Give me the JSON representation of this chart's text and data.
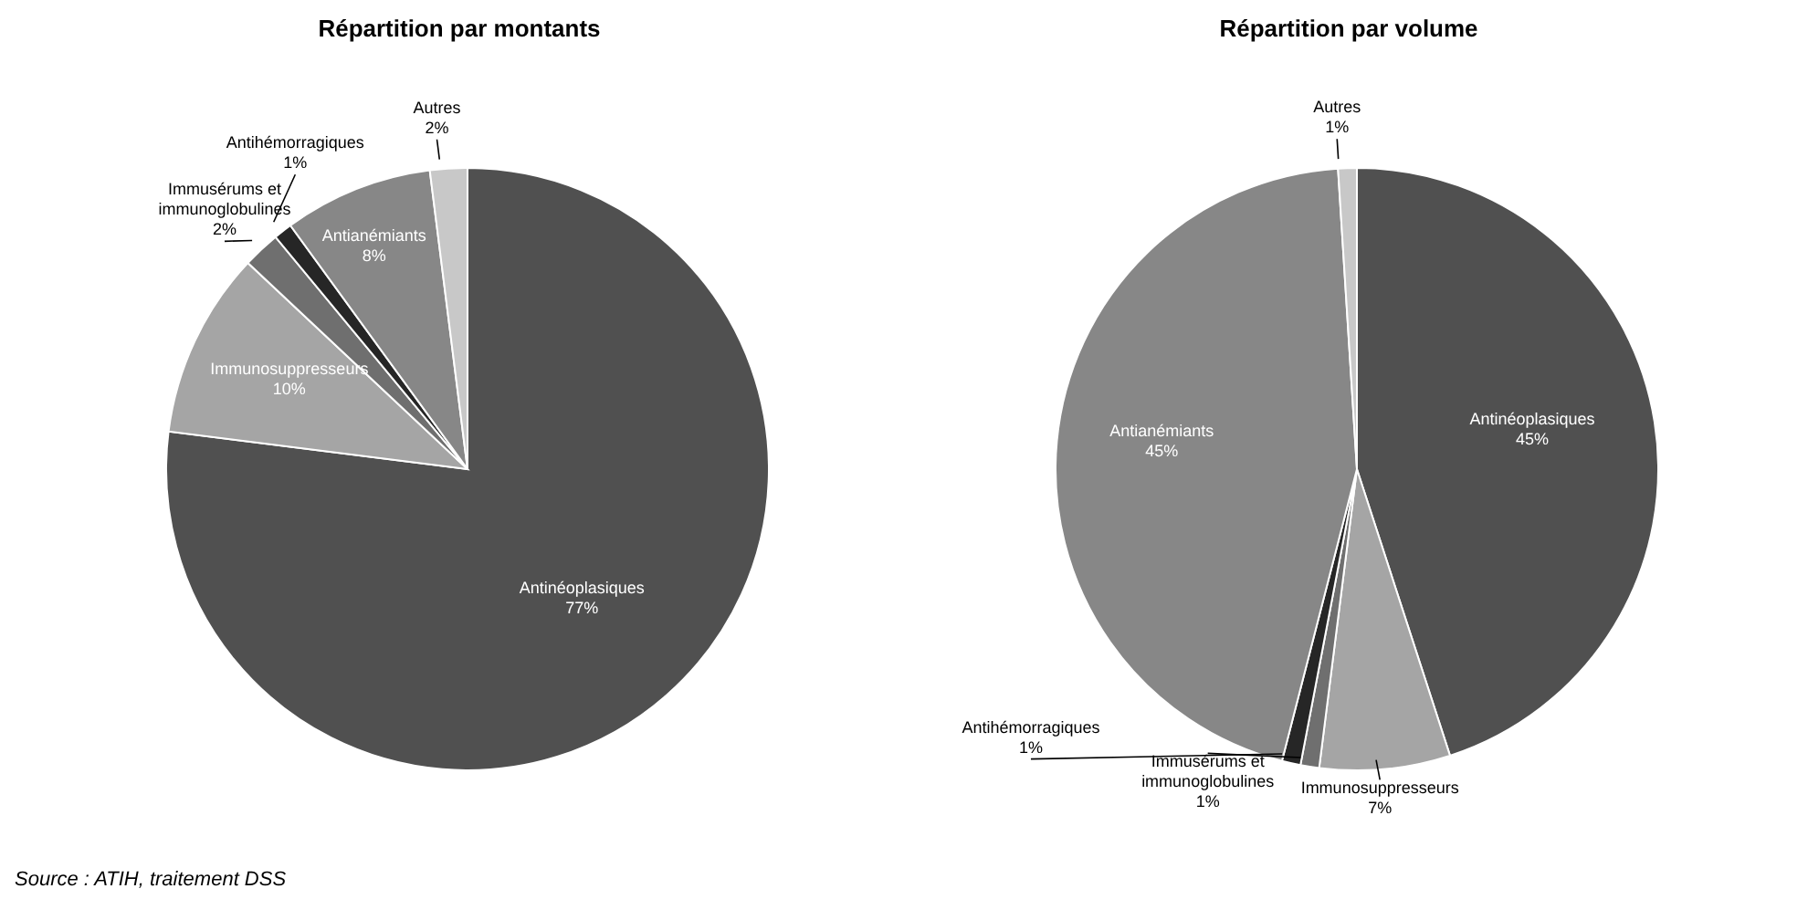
{
  "chart_data": [
    {
      "type": "pie",
      "title": "Répartition par montants",
      "categories": [
        "Antinéoplasiques",
        "Immunosuppresseurs",
        "Immusérums et immunoglobulines",
        "Antihémorragiques",
        "Antianémiants",
        "Autres"
      ],
      "values": [
        77,
        10,
        2,
        1,
        8,
        2
      ],
      "value_labels": [
        "77%",
        "10%",
        "2%",
        "1%",
        "8%",
        "2%"
      ],
      "colors": [
        "#505050",
        "#a5a5a5",
        "#6f6f6f",
        "#262626",
        "#878787",
        "#c8c8c8"
      ],
      "data_labels": true,
      "legend": false,
      "annotations": [
        "Source : ATIH, traitement DSS"
      ]
    },
    {
      "type": "pie",
      "title": "Répartition par volume",
      "categories": [
        "Antinéoplasiques",
        "Immunosuppresseurs",
        "Immusérums et immunoglobulines",
        "Antihémorragiques",
        "Antianémiants",
        "Autres"
      ],
      "values": [
        45,
        7,
        1,
        1,
        45,
        1
      ],
      "value_labels": [
        "45%",
        "7%",
        "1%",
        "1%",
        "45%",
        "1%"
      ],
      "colors": [
        "#505050",
        "#a5a5a5",
        "#6f6f6f",
        "#262626",
        "#878787",
        "#c8c8c8"
      ],
      "data_labels": true,
      "legend": false
    }
  ]
}
